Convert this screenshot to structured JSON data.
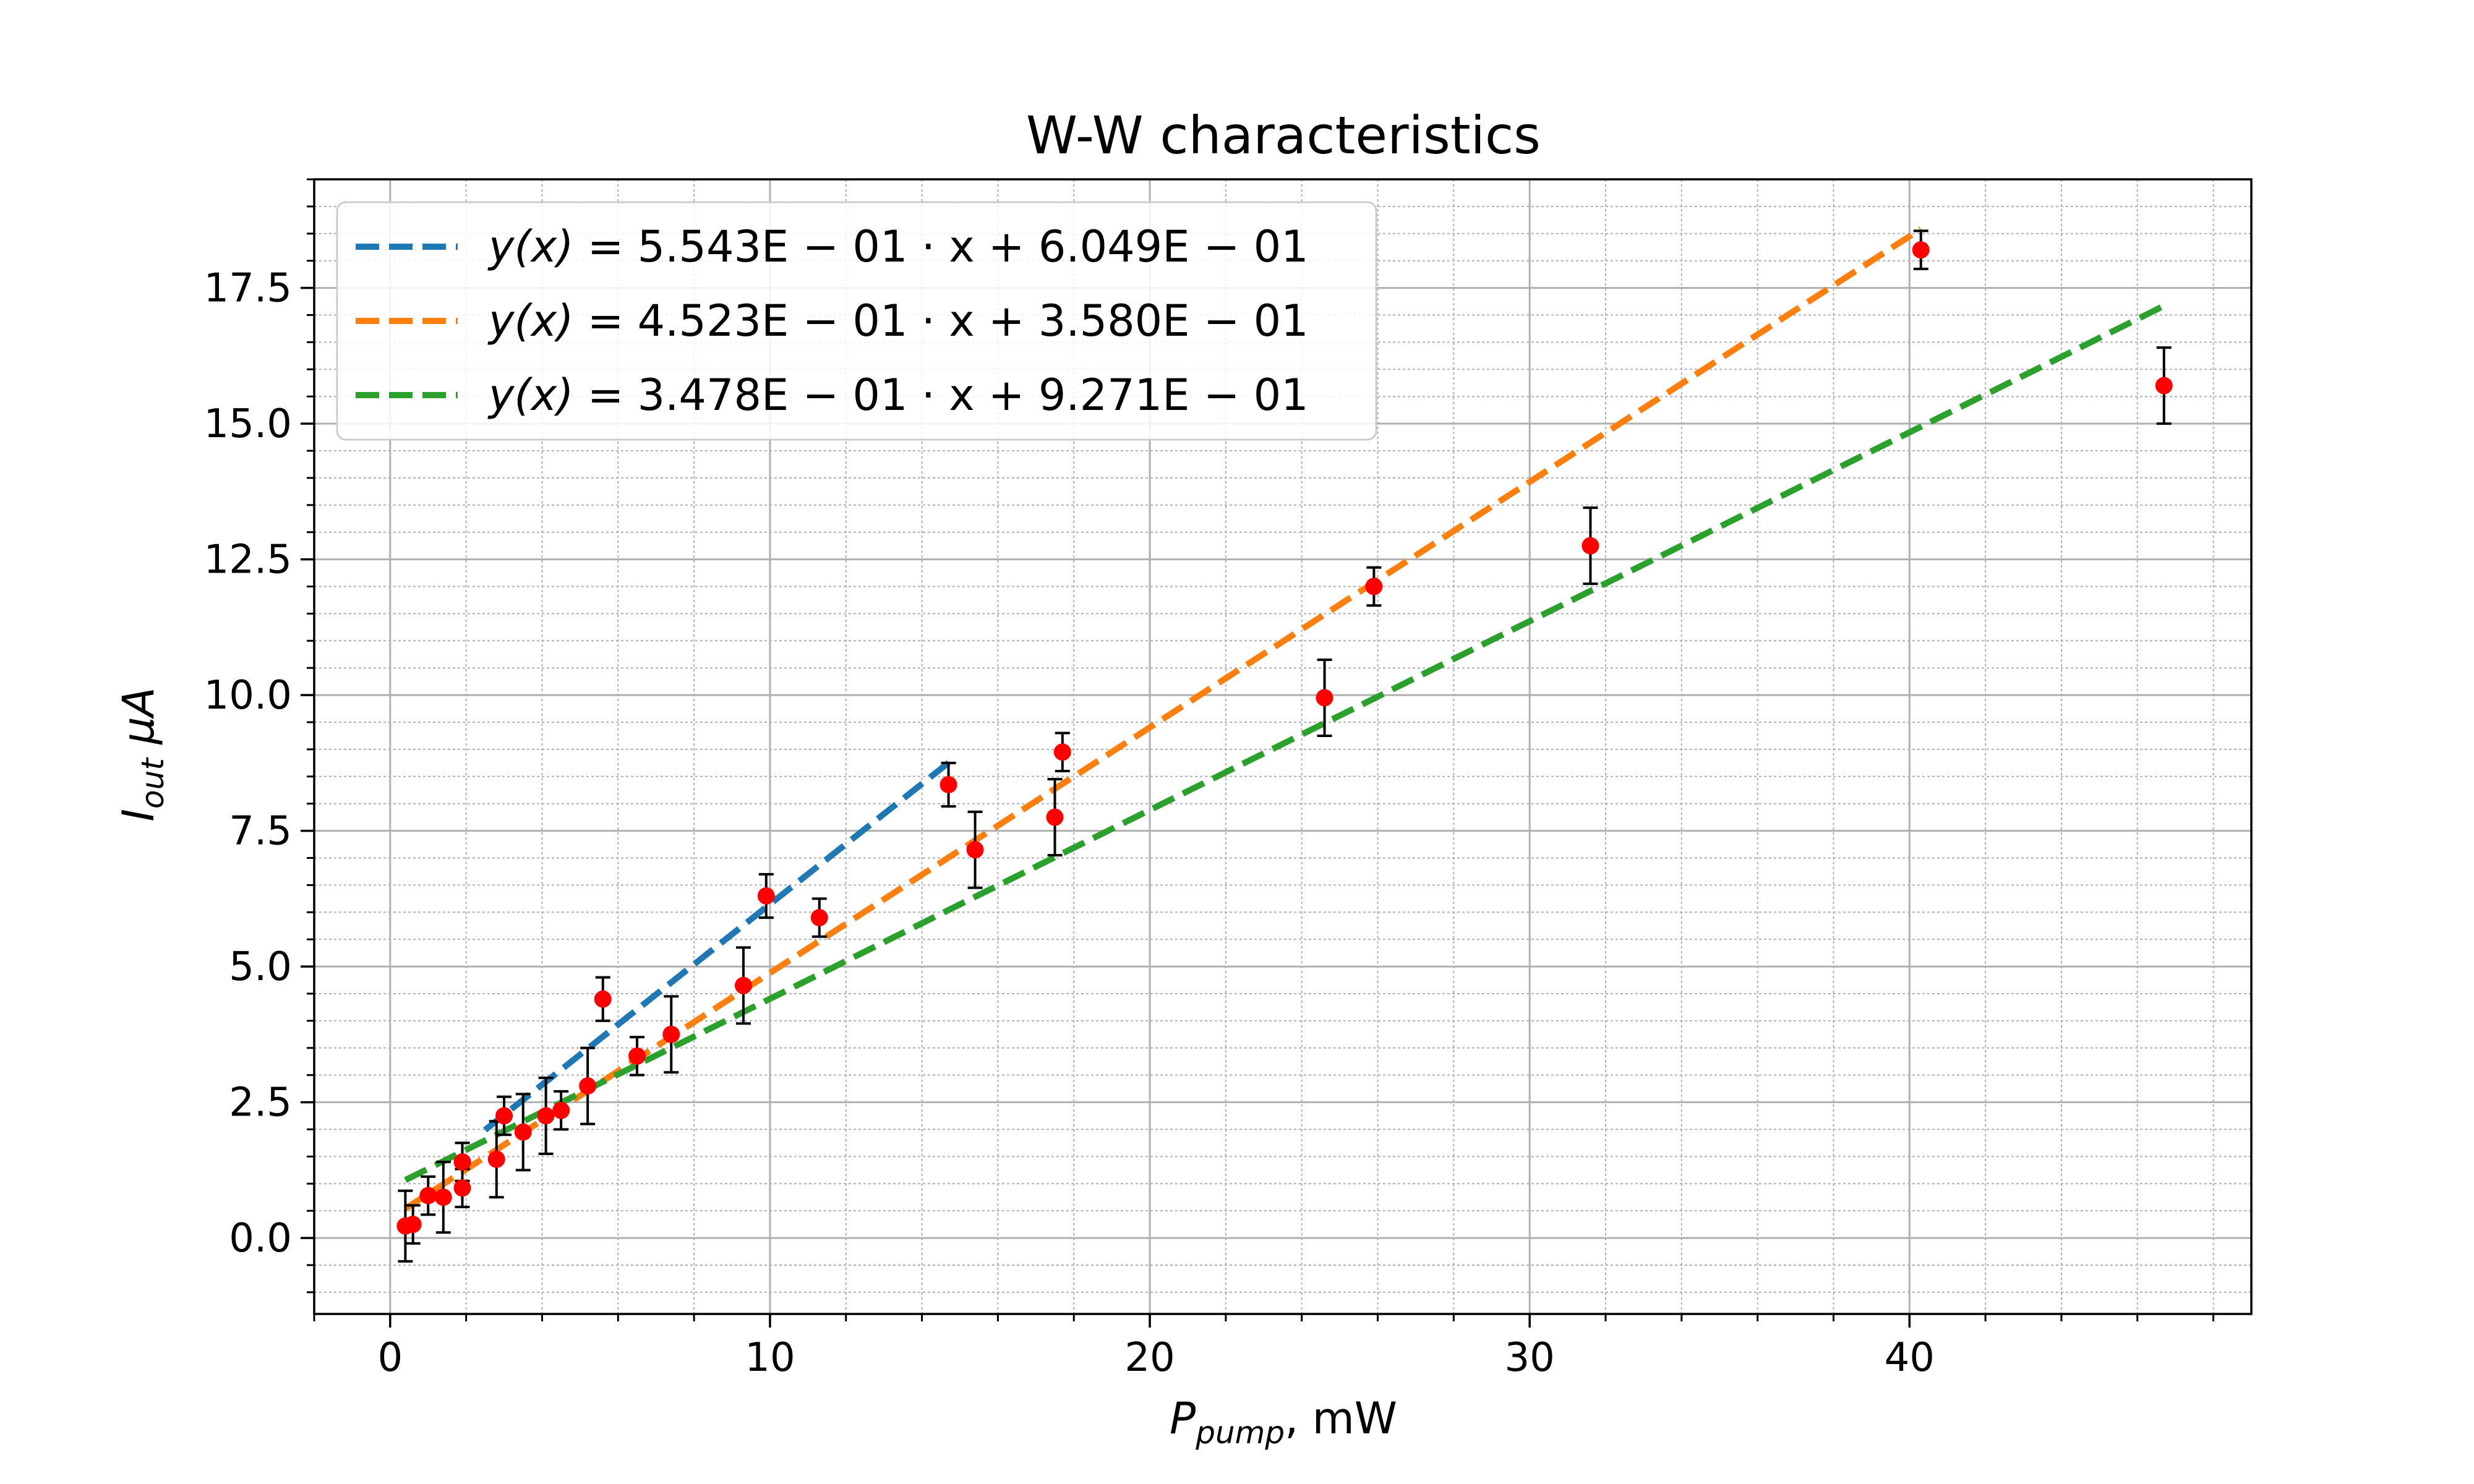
{
  "chart_data": {
    "type": "scatter",
    "title": "W-W characteristics",
    "xlabel": {
      "main": "P",
      "sub": "pump",
      "tail": ", mW"
    },
    "ylabel": {
      "main": "I",
      "sub": "out",
      "tail": " μA"
    },
    "xlim": [
      -2,
      49
    ],
    "ylim": [
      -1.4,
      19.5
    ],
    "xticks": [
      0,
      10,
      20,
      30,
      40
    ],
    "xtick_labels": [
      "0",
      "10",
      "20",
      "30",
      "40"
    ],
    "yticks": [
      0,
      2.5,
      5,
      7.5,
      10,
      12.5,
      15,
      17.5
    ],
    "ytick_labels": [
      "0.0",
      "2.5",
      "5.0",
      "7.5",
      "10.0",
      "12.5",
      "15.0",
      "17.5"
    ],
    "grid": {
      "major": true,
      "minor": true
    },
    "legend_position": "upper-left",
    "marker_color": "#ff0000",
    "errorbar_color": "#000000",
    "points": [
      {
        "x": 0.4,
        "y": 0.22,
        "err": 0.65
      },
      {
        "x": 0.6,
        "y": 0.25,
        "err": 0.35
      },
      {
        "x": 1.0,
        "y": 0.78,
        "err": 0.35
      },
      {
        "x": 1.4,
        "y": 0.75,
        "err": 0.65
      },
      {
        "x": 1.9,
        "y": 0.92,
        "err": 0.35
      },
      {
        "x": 1.9,
        "y": 1.4,
        "err": 0.35
      },
      {
        "x": 2.8,
        "y": 1.45,
        "err": 0.7
      },
      {
        "x": 3.0,
        "y": 2.25,
        "err": 0.35
      },
      {
        "x": 3.5,
        "y": 1.95,
        "err": 0.7
      },
      {
        "x": 4.1,
        "y": 2.25,
        "err": 0.7
      },
      {
        "x": 4.5,
        "y": 2.35,
        "err": 0.35
      },
      {
        "x": 5.2,
        "y": 2.8,
        "err": 0.7
      },
      {
        "x": 5.6,
        "y": 4.4,
        "err": 0.4
      },
      {
        "x": 6.5,
        "y": 3.35,
        "err": 0.35
      },
      {
        "x": 7.4,
        "y": 3.75,
        "err": 0.7
      },
      {
        "x": 9.3,
        "y": 4.65,
        "err": 0.7
      },
      {
        "x": 9.9,
        "y": 6.3,
        "err": 0.4
      },
      {
        "x": 11.3,
        "y": 5.9,
        "err": 0.35
      },
      {
        "x": 14.7,
        "y": 8.35,
        "err": 0.4
      },
      {
        "x": 15.4,
        "y": 7.15,
        "err": 0.7
      },
      {
        "x": 17.5,
        "y": 7.75,
        "err": 0.7
      },
      {
        "x": 17.7,
        "y": 8.95,
        "err": 0.35
      },
      {
        "x": 24.6,
        "y": 9.95,
        "err": 0.7
      },
      {
        "x": 25.9,
        "y": 12.0,
        "err": 0.35
      },
      {
        "x": 31.6,
        "y": 12.75,
        "err": 0.7
      },
      {
        "x": 40.3,
        "y": 18.2,
        "err": 0.35
      },
      {
        "x": 46.7,
        "y": 15.7,
        "err": 0.7
      }
    ],
    "series": [
      {
        "name": "y(x) = 5.543E − 01 · x + 6.049E − 01",
        "legend_lhs": "y(x)",
        "legend_rhs": " = 5.543E − 01 · x + 6.049E − 01",
        "slope": 0.5543,
        "intercept": 0.6049,
        "x_range": [
          2.5,
          14.7
        ],
        "color": "#1f77b4"
      },
      {
        "name": "y(x) = 4.523E − 01 · x + 3.580E − 01",
        "legend_lhs": "y(x)",
        "legend_rhs": " = 4.523E − 01 · x + 3.580E − 01",
        "slope": 0.4523,
        "intercept": 0.358,
        "x_range": [
          0.4,
          40.3
        ],
        "color": "#ff7f0e"
      },
      {
        "name": "y(x) = 3.478E − 01 · x + 9.271E − 01",
        "legend_lhs": "y(x)",
        "legend_rhs": " = 3.478E − 01 · x + 9.271E − 01",
        "slope": 0.3478,
        "intercept": 0.9271,
        "x_range": [
          0.4,
          46.7
        ],
        "color": "#2ca02c"
      }
    ]
  }
}
